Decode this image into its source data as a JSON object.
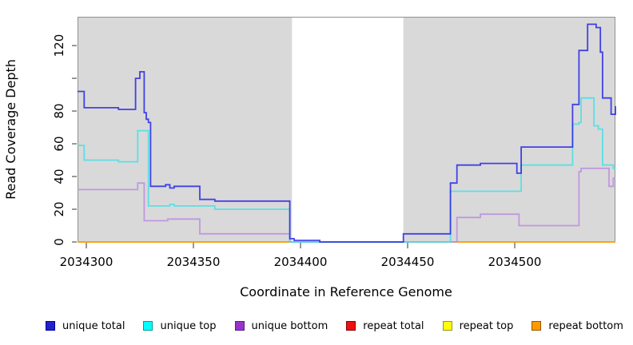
{
  "chart_data": {
    "type": "line-step",
    "title": "",
    "xlabel": "Coordinate in Reference Genome",
    "ylabel": "Read Coverage Depth",
    "xlim": [
      2034295.9,
      2034547.0
    ],
    "ylim": [
      0,
      137.6
    ],
    "x_ticks": [
      2034300,
      2034350,
      2034400,
      2034450,
      2034500
    ],
    "x_tick_labels": [
      "2034300",
      "2034350",
      "2034400",
      "2034450",
      "2034500"
    ],
    "y_ticks": [
      0,
      20,
      40,
      60,
      80,
      100,
      120
    ],
    "y_tick_labels": [
      "0",
      "20",
      "40",
      "60",
      "80",
      "",
      "120"
    ],
    "plot_background": "#d9d9d9",
    "axis_color": "#555555",
    "masked_region": {
      "x0": 2034396,
      "x1": 2034448,
      "color": "#ffffff"
    },
    "legend_position": "bottom",
    "grid": false,
    "series": [
      {
        "name": "unique total",
        "key": "unique_total",
        "line_color": "#2626e6",
        "legend_fill": "#2222cc",
        "legend_border": "#000099",
        "points": [
          [
            2034295.9,
            92
          ],
          [
            2034299,
            82
          ],
          [
            2034315,
            81
          ],
          [
            2034323,
            100
          ],
          [
            2034325,
            104
          ],
          [
            2034327,
            79
          ],
          [
            2034328,
            75
          ],
          [
            2034329,
            73
          ],
          [
            2034330,
            34
          ],
          [
            2034337,
            35
          ],
          [
            2034339,
            33
          ],
          [
            2034341,
            34
          ],
          [
            2034353,
            26
          ],
          [
            2034360,
            25
          ],
          [
            2034395,
            2
          ],
          [
            2034397,
            1
          ],
          [
            2034409,
            0
          ],
          [
            2034448,
            5
          ],
          [
            2034470,
            36
          ],
          [
            2034473,
            47
          ],
          [
            2034484,
            48
          ],
          [
            2034501,
            42
          ],
          [
            2034503,
            58
          ],
          [
            2034527,
            84
          ],
          [
            2034530,
            117
          ],
          [
            2034534,
            133
          ],
          [
            2034538,
            131
          ],
          [
            2034540,
            116
          ],
          [
            2034541,
            88
          ],
          [
            2034545,
            78
          ],
          [
            2034547,
            83
          ]
        ]
      },
      {
        "name": "unique top",
        "key": "unique_top",
        "line_color": "#45dfe8",
        "legend_fill": "#00ffff",
        "legend_border": "#009999",
        "points": [
          [
            2034295.9,
            59
          ],
          [
            2034299,
            50
          ],
          [
            2034315,
            49
          ],
          [
            2034324,
            68
          ],
          [
            2034329,
            22
          ],
          [
            2034339,
            23
          ],
          [
            2034341,
            22
          ],
          [
            2034360,
            20
          ],
          [
            2034395,
            0
          ],
          [
            2034470,
            31
          ],
          [
            2034503,
            47
          ],
          [
            2034527,
            72
          ],
          [
            2034530,
            73
          ],
          [
            2034531,
            88
          ],
          [
            2034537,
            71
          ],
          [
            2034539,
            69
          ],
          [
            2034541,
            47
          ],
          [
            2034546,
            45
          ]
        ]
      },
      {
        "name": "unique bottom",
        "key": "unique_bottom",
        "line_color": "#bb8ce0",
        "legend_fill": "#9932cc",
        "legend_border": "#5a1a8b",
        "points": [
          [
            2034295.9,
            32
          ],
          [
            2034324,
            36
          ],
          [
            2034327,
            13
          ],
          [
            2034338,
            14
          ],
          [
            2034353,
            5
          ],
          [
            2034395,
            0
          ],
          [
            2034473,
            15
          ],
          [
            2034484,
            17
          ],
          [
            2034502,
            10
          ],
          [
            2034530,
            43
          ],
          [
            2034531,
            45
          ],
          [
            2034544,
            34
          ],
          [
            2034546,
            39
          ]
        ]
      },
      {
        "name": "repeat total",
        "key": "repeat_total",
        "line_color": "#e60000",
        "legend_fill": "#ee1111",
        "legend_border": "#880000",
        "points": [
          [
            2034295.9,
            0
          ]
        ]
      },
      {
        "name": "repeat top",
        "key": "repeat_top",
        "line_color": "#f0f000",
        "legend_fill": "#ffff00",
        "legend_border": "#999900",
        "points": [
          [
            2034295.9,
            0
          ]
        ]
      },
      {
        "name": "repeat bottom",
        "key": "repeat_bottom",
        "line_color": "#ff9b1a",
        "legend_fill": "#ff9900",
        "legend_border": "#995500",
        "points": [
          [
            2034295.9,
            0
          ]
        ]
      }
    ]
  }
}
